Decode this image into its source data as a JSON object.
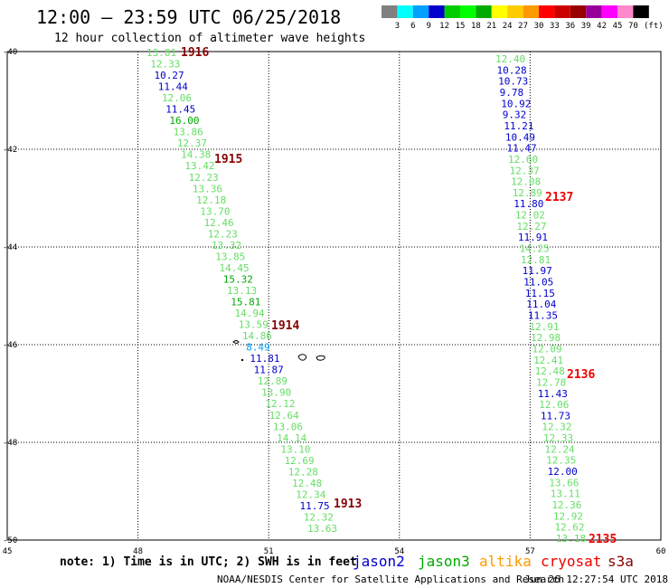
{
  "header": {
    "title": "12:00 – 23:59 UTC 06/25/2018",
    "subtitle": "12 hour collection of altimeter wave heights"
  },
  "legend": {
    "colors": [
      "#808080",
      "#00ffff",
      "#00a0ff",
      "#0000cc",
      "#00cc00",
      "#00ff00",
      "#00aa00",
      "#ffff00",
      "#ffcc00",
      "#ff9900",
      "#ff0000",
      "#cc0000",
      "#990000",
      "#990099",
      "#ff00ff",
      "#ff88cc",
      "#000000"
    ],
    "labels": [
      "3",
      "6",
      "9",
      "12",
      "15",
      "18",
      "21",
      "24",
      "27",
      "30",
      "33",
      "36",
      "39",
      "42",
      "45",
      "70"
    ],
    "unit": "(ft)"
  },
  "map": {
    "lon_min": 45,
    "lon_max": 60,
    "lat_min": -50,
    "lat_max": -40,
    "lon_ticks": [
      45,
      48,
      51,
      54,
      57,
      60
    ],
    "lat_ticks": [
      -40,
      -42,
      -44,
      -46,
      -48,
      -50
    ]
  },
  "tracks": [
    {
      "values": [
        "13.81",
        "12.33",
        "10.27",
        "11.44",
        "12.06",
        "11.45",
        "16.00",
        "13.86",
        "12.37",
        "14.38",
        "13.42",
        "12.23",
        "13.36",
        "12.18",
        "13.70",
        "12.46",
        "12.23",
        "13.32",
        "13.85",
        "14.45",
        "15.32",
        "13.13",
        "15.81",
        "14.94",
        "13.59",
        "14.86",
        "8.49",
        "11.81",
        "11.87",
        "12.89",
        "13.90",
        "12.12",
        "12.64",
        "13.06",
        "14.14",
        "13.10",
        "12.69",
        "12.28",
        "12.48",
        "12.34",
        "11.75",
        "12.32",
        "13.63"
      ],
      "colors": [
        "#66dd66",
        "#66dd66",
        "#0000cc",
        "#0000cc",
        "#66dd66",
        "#0000cc",
        "#00aa00",
        "#66dd66",
        "#66dd66",
        "#66dd66",
        "#66dd66",
        "#66dd66",
        "#66dd66",
        "#66dd66",
        "#66dd66",
        "#66dd66",
        "#66dd66",
        "#66dd66",
        "#66dd66",
        "#66dd66",
        "#00aa00",
        "#66dd66",
        "#00aa00",
        "#66dd66",
        "#66dd66",
        "#66dd66",
        "#00a0ff",
        "#0000cc",
        "#0000cc",
        "#66dd66",
        "#66dd66",
        "#66dd66",
        "#66dd66",
        "#66dd66",
        "#66dd66",
        "#66dd66",
        "#66dd66",
        "#66dd66",
        "#66dd66",
        "#66dd66",
        "#0000cc",
        "#66dd66",
        "#66dd66"
      ]
    },
    {
      "values": [
        "12.40",
        "10.28",
        "10.73",
        "9.78",
        "10.92",
        "9.32",
        "11.21",
        "10.49",
        "11.47",
        "12.60",
        "12.37",
        "12.08",
        "12.89",
        "11.80",
        "12.02",
        "12.27",
        "11.91",
        "14.25",
        "12.81",
        "11.97",
        "11.05",
        "11.15",
        "11.04",
        "11.35",
        "12.91",
        "12.98",
        "12.09",
        "12.41",
        "12.48",
        "12.78",
        "11.43",
        "12.06",
        "11.73",
        "12.32",
        "12.33",
        "12.24",
        "12.35",
        "12.00",
        "13.66",
        "13.11",
        "12.36",
        "12.92",
        "12.62",
        "13.18"
      ],
      "colors": [
        "#66dd66",
        "#0000cc",
        "#0000cc",
        "#0000cc",
        "#0000cc",
        "#0000cc",
        "#0000cc",
        "#0000cc",
        "#0000cc",
        "#66dd66",
        "#66dd66",
        "#66dd66",
        "#66dd66",
        "#0000cc",
        "#66dd66",
        "#66dd66",
        "#0000cc",
        "#66dd66",
        "#66dd66",
        "#0000cc",
        "#0000cc",
        "#0000cc",
        "#0000cc",
        "#0000cc",
        "#66dd66",
        "#66dd66",
        "#66dd66",
        "#66dd66",
        "#66dd66",
        "#66dd66",
        "#0000cc",
        "#66dd66",
        "#0000cc",
        "#66dd66",
        "#66dd66",
        "#66dd66",
        "#66dd66",
        "#0000cc",
        "#66dd66",
        "#66dd66",
        "#66dd66",
        "#66dd66",
        "#66dd66",
        "#66dd66"
      ]
    }
  ],
  "pass_times": [
    {
      "text": "1916",
      "color": "#880000"
    },
    {
      "text": "1915",
      "color": "#880000"
    },
    {
      "text": "1914",
      "color": "#880000"
    },
    {
      "text": "1913",
      "color": "#880000"
    },
    {
      "text": "2137",
      "color": "#ee0000"
    },
    {
      "text": "2136",
      "color": "#ee0000"
    },
    {
      "text": "2135",
      "color": "#ee0000"
    }
  ],
  "note": "note: 1) Time is in UTC; 2) SWH is in feet",
  "satellites": [
    {
      "name": "jason2",
      "color": "#0000cc"
    },
    {
      "name": "jason3",
      "color": "#00aa00"
    },
    {
      "name": "altika",
      "color": "#ff9900"
    },
    {
      "name": "cryosat",
      "color": "#ee0000"
    },
    {
      "name": "s3a",
      "color": "#880000"
    }
  ],
  "footer": {
    "agency": "NOAA/NESDIS Center for Satellite Applications and Research",
    "timestamp": "Jun 26 12:27:54 UTC 2018"
  }
}
